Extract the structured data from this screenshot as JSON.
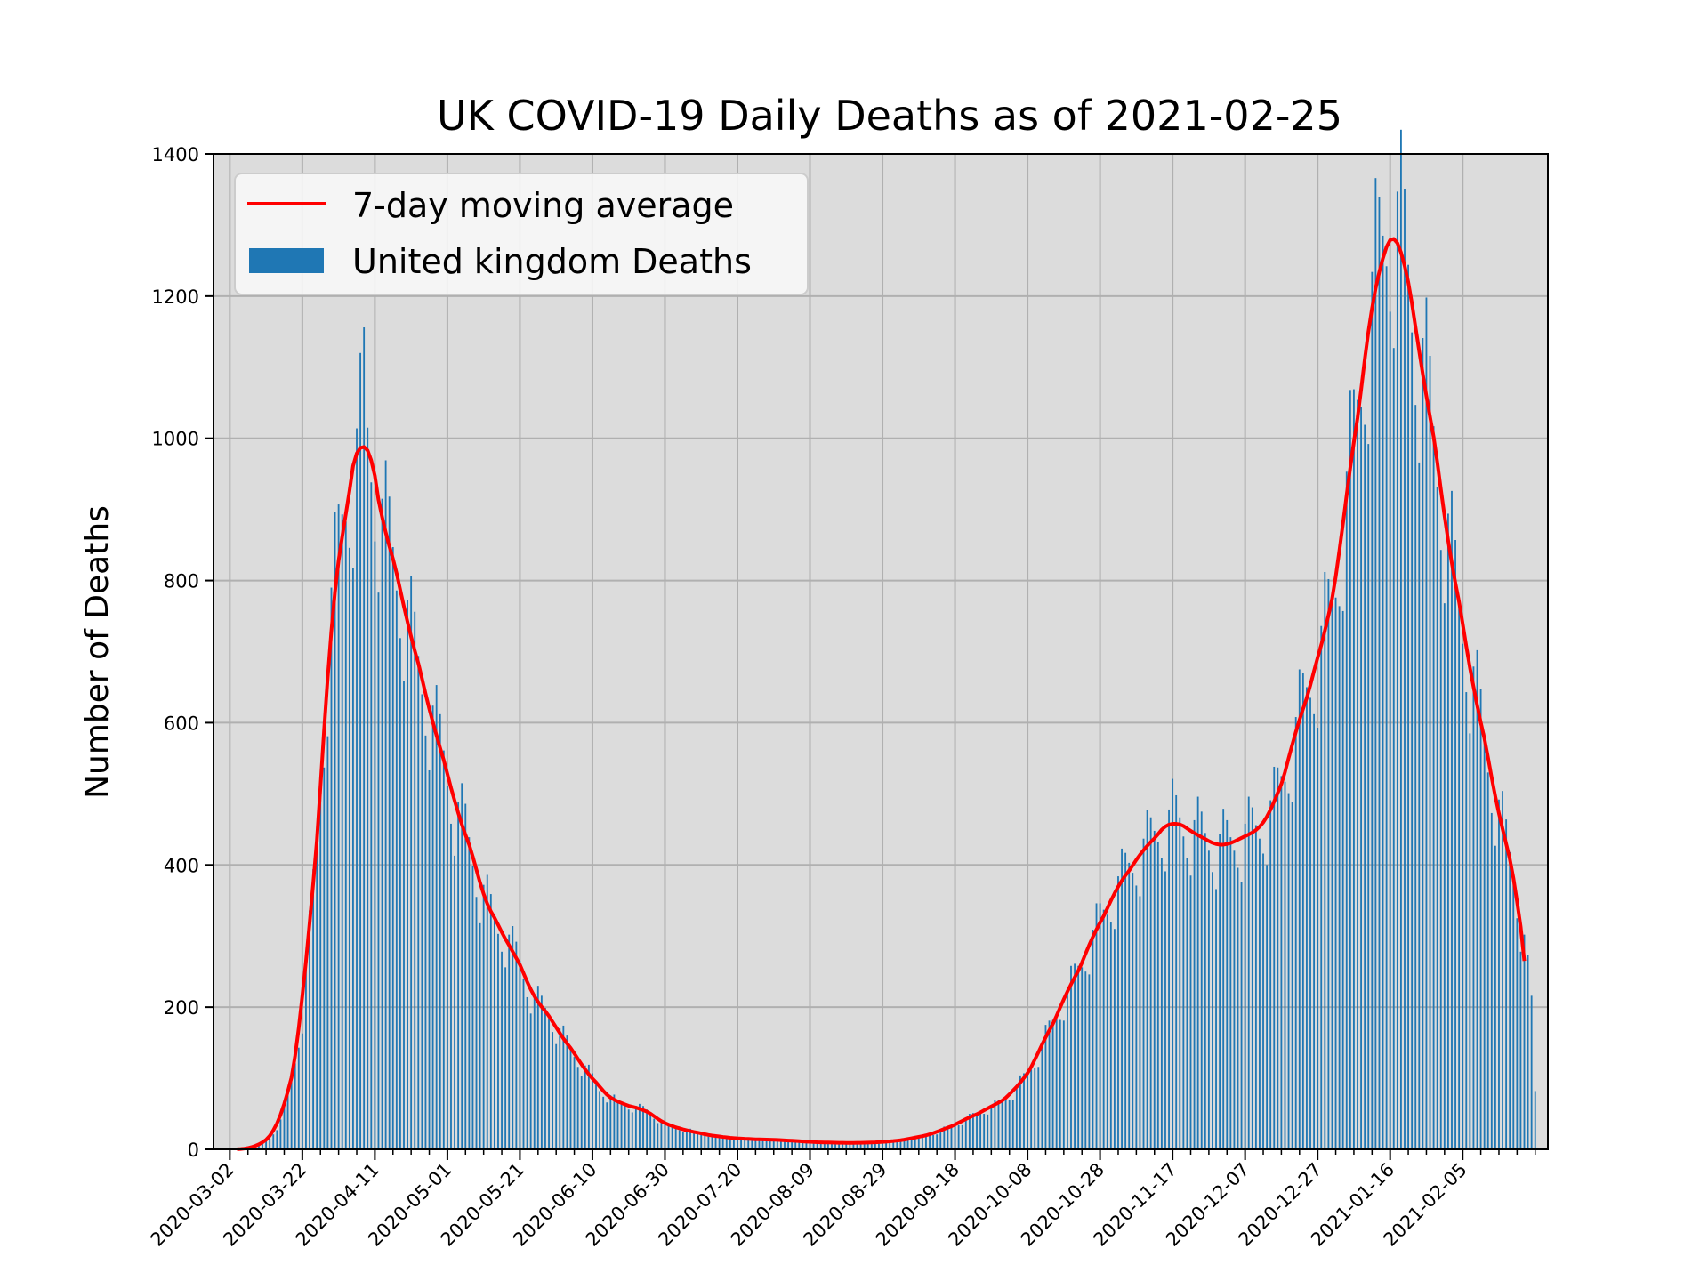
{
  "chart_data": {
    "type": "bar",
    "title": "UK COVID-19 Daily Deaths as of 2021-02-25",
    "xlabel": "",
    "ylabel": "Number of Deaths",
    "start_date": "2020-03-01",
    "end_date": "2021-02-25",
    "ylim": [
      0,
      1400
    ],
    "yticks": [
      0,
      200,
      400,
      600,
      800,
      1000,
      1200,
      1400
    ],
    "xticks": [
      "2020-03-02",
      "2020-03-22",
      "2020-04-11",
      "2020-05-01",
      "2020-05-21",
      "2020-06-10",
      "2020-06-30",
      "2020-07-20",
      "2020-08-09",
      "2020-08-29",
      "2020-09-18",
      "2020-10-08",
      "2020-10-28",
      "2020-11-17",
      "2020-12-07",
      "2020-12-27",
      "2021-01-16",
      "2021-02-05"
    ],
    "grid": true,
    "legend_position": "upper-left",
    "series": [
      {
        "name": "United kingdom Deaths",
        "kind": "bar",
        "color": "#1f77b4"
      },
      {
        "name": "7-day moving average",
        "kind": "line",
        "color": "#ff0000"
      }
    ],
    "daily_deaths_anchors": [
      [
        "2020-03-01",
        0
      ],
      [
        "2020-03-06",
        0
      ],
      [
        "2020-03-08",
        2
      ],
      [
        "2020-03-10",
        5
      ],
      [
        "2020-03-13",
        15
      ],
      [
        "2020-03-16",
        40
      ],
      [
        "2020-03-18",
        70
      ],
      [
        "2020-03-20",
        125
      ],
      [
        "2020-03-22",
        190
      ],
      [
        "2020-03-24",
        300
      ],
      [
        "2020-03-26",
        430
      ],
      [
        "2020-03-28",
        590
      ],
      [
        "2020-03-30",
        760
      ],
      [
        "2020-04-01",
        840
      ],
      [
        "2020-04-03",
        910
      ],
      [
        "2020-04-05",
        950
      ],
      [
        "2020-04-07",
        1000
      ],
      [
        "2020-04-08",
        1070
      ],
      [
        "2020-04-09",
        995
      ],
      [
        "2020-04-11",
        940
      ],
      [
        "2020-04-13",
        880
      ],
      [
        "2020-04-15",
        850
      ],
      [
        "2020-04-18",
        790
      ],
      [
        "2020-04-21",
        720
      ],
      [
        "2020-04-24",
        660
      ],
      [
        "2020-04-27",
        600
      ],
      [
        "2020-04-30",
        550
      ],
      [
        "2020-05-03",
        480
      ],
      [
        "2020-05-06",
        450
      ],
      [
        "2020-05-10",
        370
      ],
      [
        "2020-05-14",
        320
      ],
      [
        "2020-05-18",
        290
      ],
      [
        "2020-05-21",
        260
      ],
      [
        "2020-05-25",
        210
      ],
      [
        "2020-05-29",
        190
      ],
      [
        "2020-06-02",
        155
      ],
      [
        "2020-06-07",
        120
      ],
      [
        "2020-06-12",
        85
      ],
      [
        "2020-06-17",
        65
      ],
      [
        "2020-06-21",
        60
      ],
      [
        "2020-06-25",
        55
      ],
      [
        "2020-06-30",
        35
      ],
      [
        "2020-07-05",
        28
      ],
      [
        "2020-07-10",
        22
      ],
      [
        "2020-07-15",
        18
      ],
      [
        "2020-07-20",
        15
      ],
      [
        "2020-08-01",
        13
      ],
      [
        "2020-08-10",
        10
      ],
      [
        "2020-08-20",
        9
      ],
      [
        "2020-08-29",
        10
      ],
      [
        "2020-09-05",
        14
      ],
      [
        "2020-09-12",
        22
      ],
      [
        "2020-09-18",
        35
      ],
      [
        "2020-09-24",
        50
      ],
      [
        "2020-09-30",
        65
      ],
      [
        "2020-10-04",
        80
      ],
      [
        "2020-10-08",
        105
      ],
      [
        "2020-10-12",
        145
      ],
      [
        "2020-10-16",
        190
      ],
      [
        "2020-10-20",
        230
      ],
      [
        "2020-10-24",
        275
      ],
      [
        "2020-10-28",
        320
      ],
      [
        "2020-11-01",
        360
      ],
      [
        "2020-11-05",
        395
      ],
      [
        "2020-11-09",
        420
      ],
      [
        "2020-11-13",
        445
      ],
      [
        "2020-11-17",
        465
      ],
      [
        "2020-11-21",
        450
      ],
      [
        "2020-11-25",
        440
      ],
      [
        "2020-11-29",
        425
      ],
      [
        "2020-12-03",
        430
      ],
      [
        "2020-12-07",
        440
      ],
      [
        "2020-12-11",
        450
      ],
      [
        "2020-12-15",
        480
      ],
      [
        "2020-12-19",
        550
      ],
      [
        "2020-12-23",
        620
      ],
      [
        "2020-12-27",
        690
      ],
      [
        "2020-12-31",
        760
      ],
      [
        "2021-01-03",
        880
      ],
      [
        "2021-01-06",
        990
      ],
      [
        "2021-01-09",
        1120
      ],
      [
        "2021-01-12",
        1220
      ],
      [
        "2021-01-15",
        1280
      ],
      [
        "2021-01-17",
        1310
      ],
      [
        "2021-01-19",
        1280
      ],
      [
        "2021-01-21",
        1220
      ],
      [
        "2021-01-23",
        1150
      ],
      [
        "2021-01-26",
        1070
      ],
      [
        "2021-01-29",
        960
      ],
      [
        "2021-02-01",
        860
      ],
      [
        "2021-02-04",
        760
      ],
      [
        "2021-02-07",
        680
      ],
      [
        "2021-02-10",
        600
      ],
      [
        "2021-02-13",
        520
      ],
      [
        "2021-02-16",
        450
      ],
      [
        "2021-02-19",
        390
      ],
      [
        "2021-02-22",
        290
      ],
      [
        "2021-02-24",
        200
      ],
      [
        "2021-02-25",
        80
      ]
    ]
  }
}
